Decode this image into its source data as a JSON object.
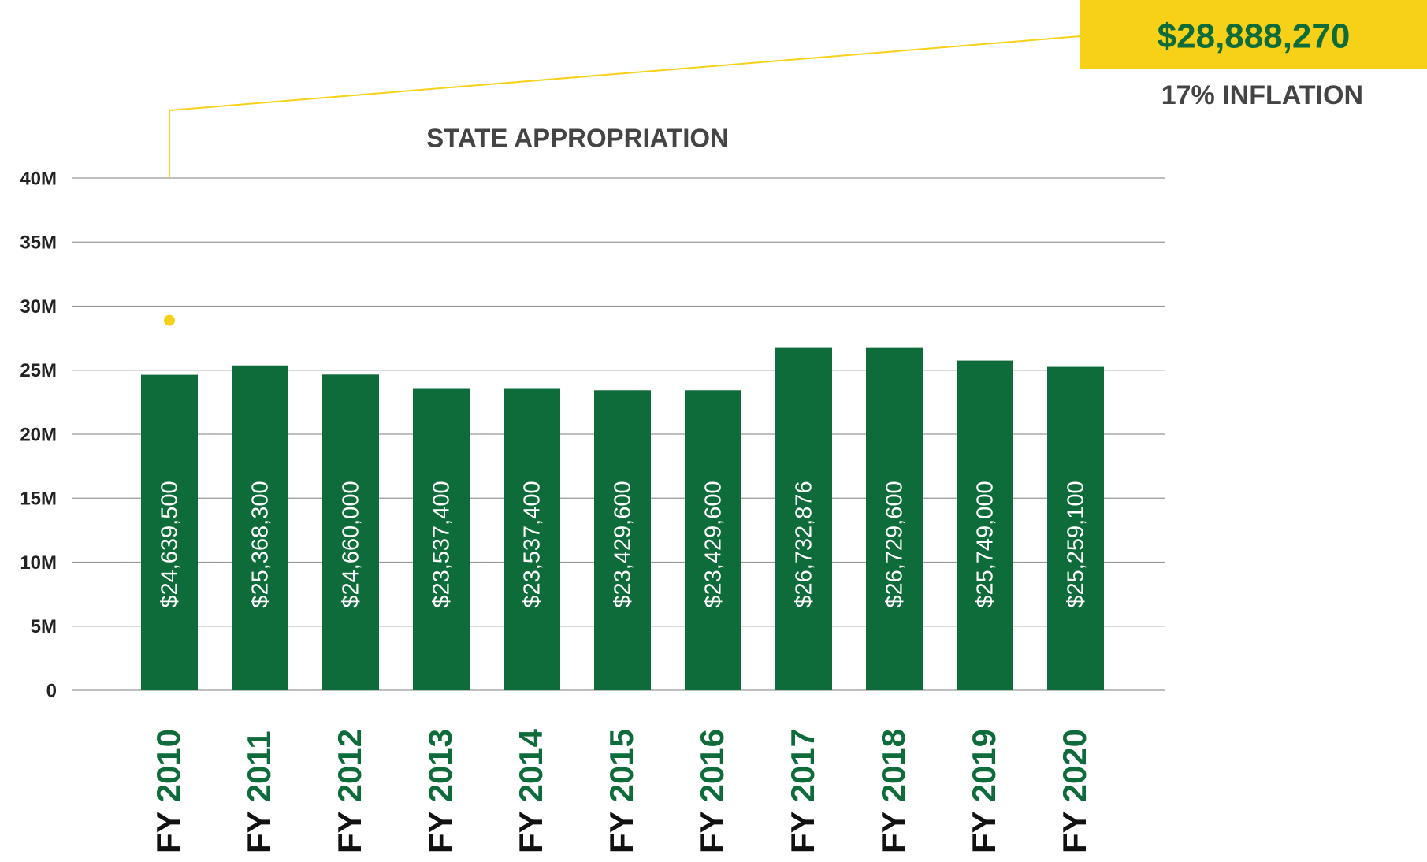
{
  "chart_data": {
    "type": "bar",
    "title": "STATE APPROPRIATION",
    "categories": [
      "FY 2010",
      "FY 2011",
      "FY 2012",
      "FY 2013",
      "FY 2014",
      "FY 2015",
      "FY 2016",
      "FY 2017",
      "FY 2018",
      "FY 2019",
      "FY 2020"
    ],
    "values": [
      24639500,
      25368300,
      24660000,
      23537400,
      23537400,
      23429600,
      23429600,
      26732876,
      26729600,
      25749000,
      25259100
    ],
    "value_labels": [
      "$24,639,500",
      "$25,368,300",
      "$24,660,000",
      "$23,537,400",
      "$23,537,400",
      "$23,429,600",
      "$23,429,600",
      "$26,732,876",
      "$26,729,600",
      "$25,749,000",
      "$25,259,100"
    ],
    "color": "#0e6b3a",
    "ylim": [
      0,
      40000000
    ],
    "yticks": [
      0,
      {
        "value": 5000000,
        "label": "5M"
      },
      {
        "value": 10000000,
        "label": "10M"
      },
      {
        "value": 15000000,
        "label": "15M"
      },
      {
        "value": 20000000,
        "label": "20M"
      },
      {
        "value": 25000000,
        "label": "25M"
      },
      {
        "value": 30000000,
        "label": "30M"
      },
      {
        "value": 35000000,
        "label": "35M"
      },
      {
        "value": 40000000,
        "label": "40M"
      }
    ],
    "grid": true,
    "annotation": {
      "value": 28888270,
      "label": "$28,888,270",
      "note": "17% INFLATION",
      "color": "#f7d117"
    }
  }
}
